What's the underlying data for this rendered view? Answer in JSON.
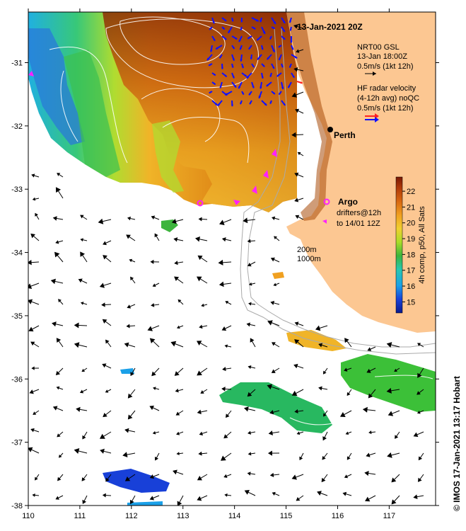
{
  "title": "13-Jan-2021 20Z",
  "legend": {
    "model_lines": [
      "NRT00 GSL",
      "13-Jan 18:00Z",
      "0.5m/s (1kt 12h)"
    ],
    "radar_lines": [
      "HF radar velocity",
      "(4-12h avg) noQC",
      "0.5m/s (1kt 12h)"
    ],
    "argo_label": "Argo",
    "drifter_lines": [
      "drifters@12h",
      "to 14/01 12Z"
    ],
    "depth_lines": [
      "200m",
      "1000m"
    ]
  },
  "place_label": "Perth",
  "colorbar": {
    "label": "4h comp, p50, All Sats",
    "ticks": [
      "15",
      "16",
      "17",
      "18",
      "19",
      "20",
      "21",
      "22"
    ],
    "range": [
      14.3,
      22.9
    ],
    "colors": [
      "#0a1a8c",
      "#1840d8",
      "#1aa0e8",
      "#28c8b0",
      "#3cb43c",
      "#a8dc28",
      "#f0d030",
      "#f0a020",
      "#d86810",
      "#b03a08",
      "#7a1804"
    ]
  },
  "axes": {
    "lon_ticks": [
      "110",
      "111",
      "112",
      "113",
      "114",
      "115",
      "116",
      "117"
    ],
    "lat_ticks": [
      "-31",
      "-32",
      "-33",
      "-34",
      "-35",
      "-36",
      "-37",
      "-38"
    ],
    "lon_range": [
      110,
      117.9
    ],
    "lat_range": [
      -38,
      -30.2
    ]
  },
  "credit": "© IMOS 17-Jan-2021 13:17 Hobart",
  "colors": {
    "land": "#fcc792",
    "model_arrow": "#000000",
    "radar_arrow_a": "#1010ff",
    "radar_arrow_b": "#ff2020",
    "argo": "#ff20ff",
    "bathymetry": "#aaaaaa"
  }
}
